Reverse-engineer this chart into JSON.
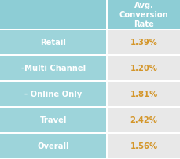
{
  "header_right": "Avg.\nConversion\nRate",
  "rows": [
    {
      "label": "Retail",
      "value": "1.39%"
    },
    {
      "label": "-Multi Channel",
      "value": "1.20%"
    },
    {
      "label": "- Online Only",
      "value": "1.81%"
    },
    {
      "label": "Travel",
      "value": "2.42%"
    },
    {
      "label": "Overall",
      "value": "1.56%"
    }
  ],
  "header_bg": "#8dcdd5",
  "row_label_bg": "#9dd4da",
  "row_value_bg": "#e8e8e8",
  "header_text_color": "#ffffff",
  "label_text_color": "#ffffff",
  "value_text_color": "#d4962a",
  "bg_color": "#ffffff",
  "divider_color": "#ffffff",
  "col_split": 0.595,
  "label_fontsize": 7.2,
  "value_fontsize": 7.2,
  "header_fontsize": 7.2
}
